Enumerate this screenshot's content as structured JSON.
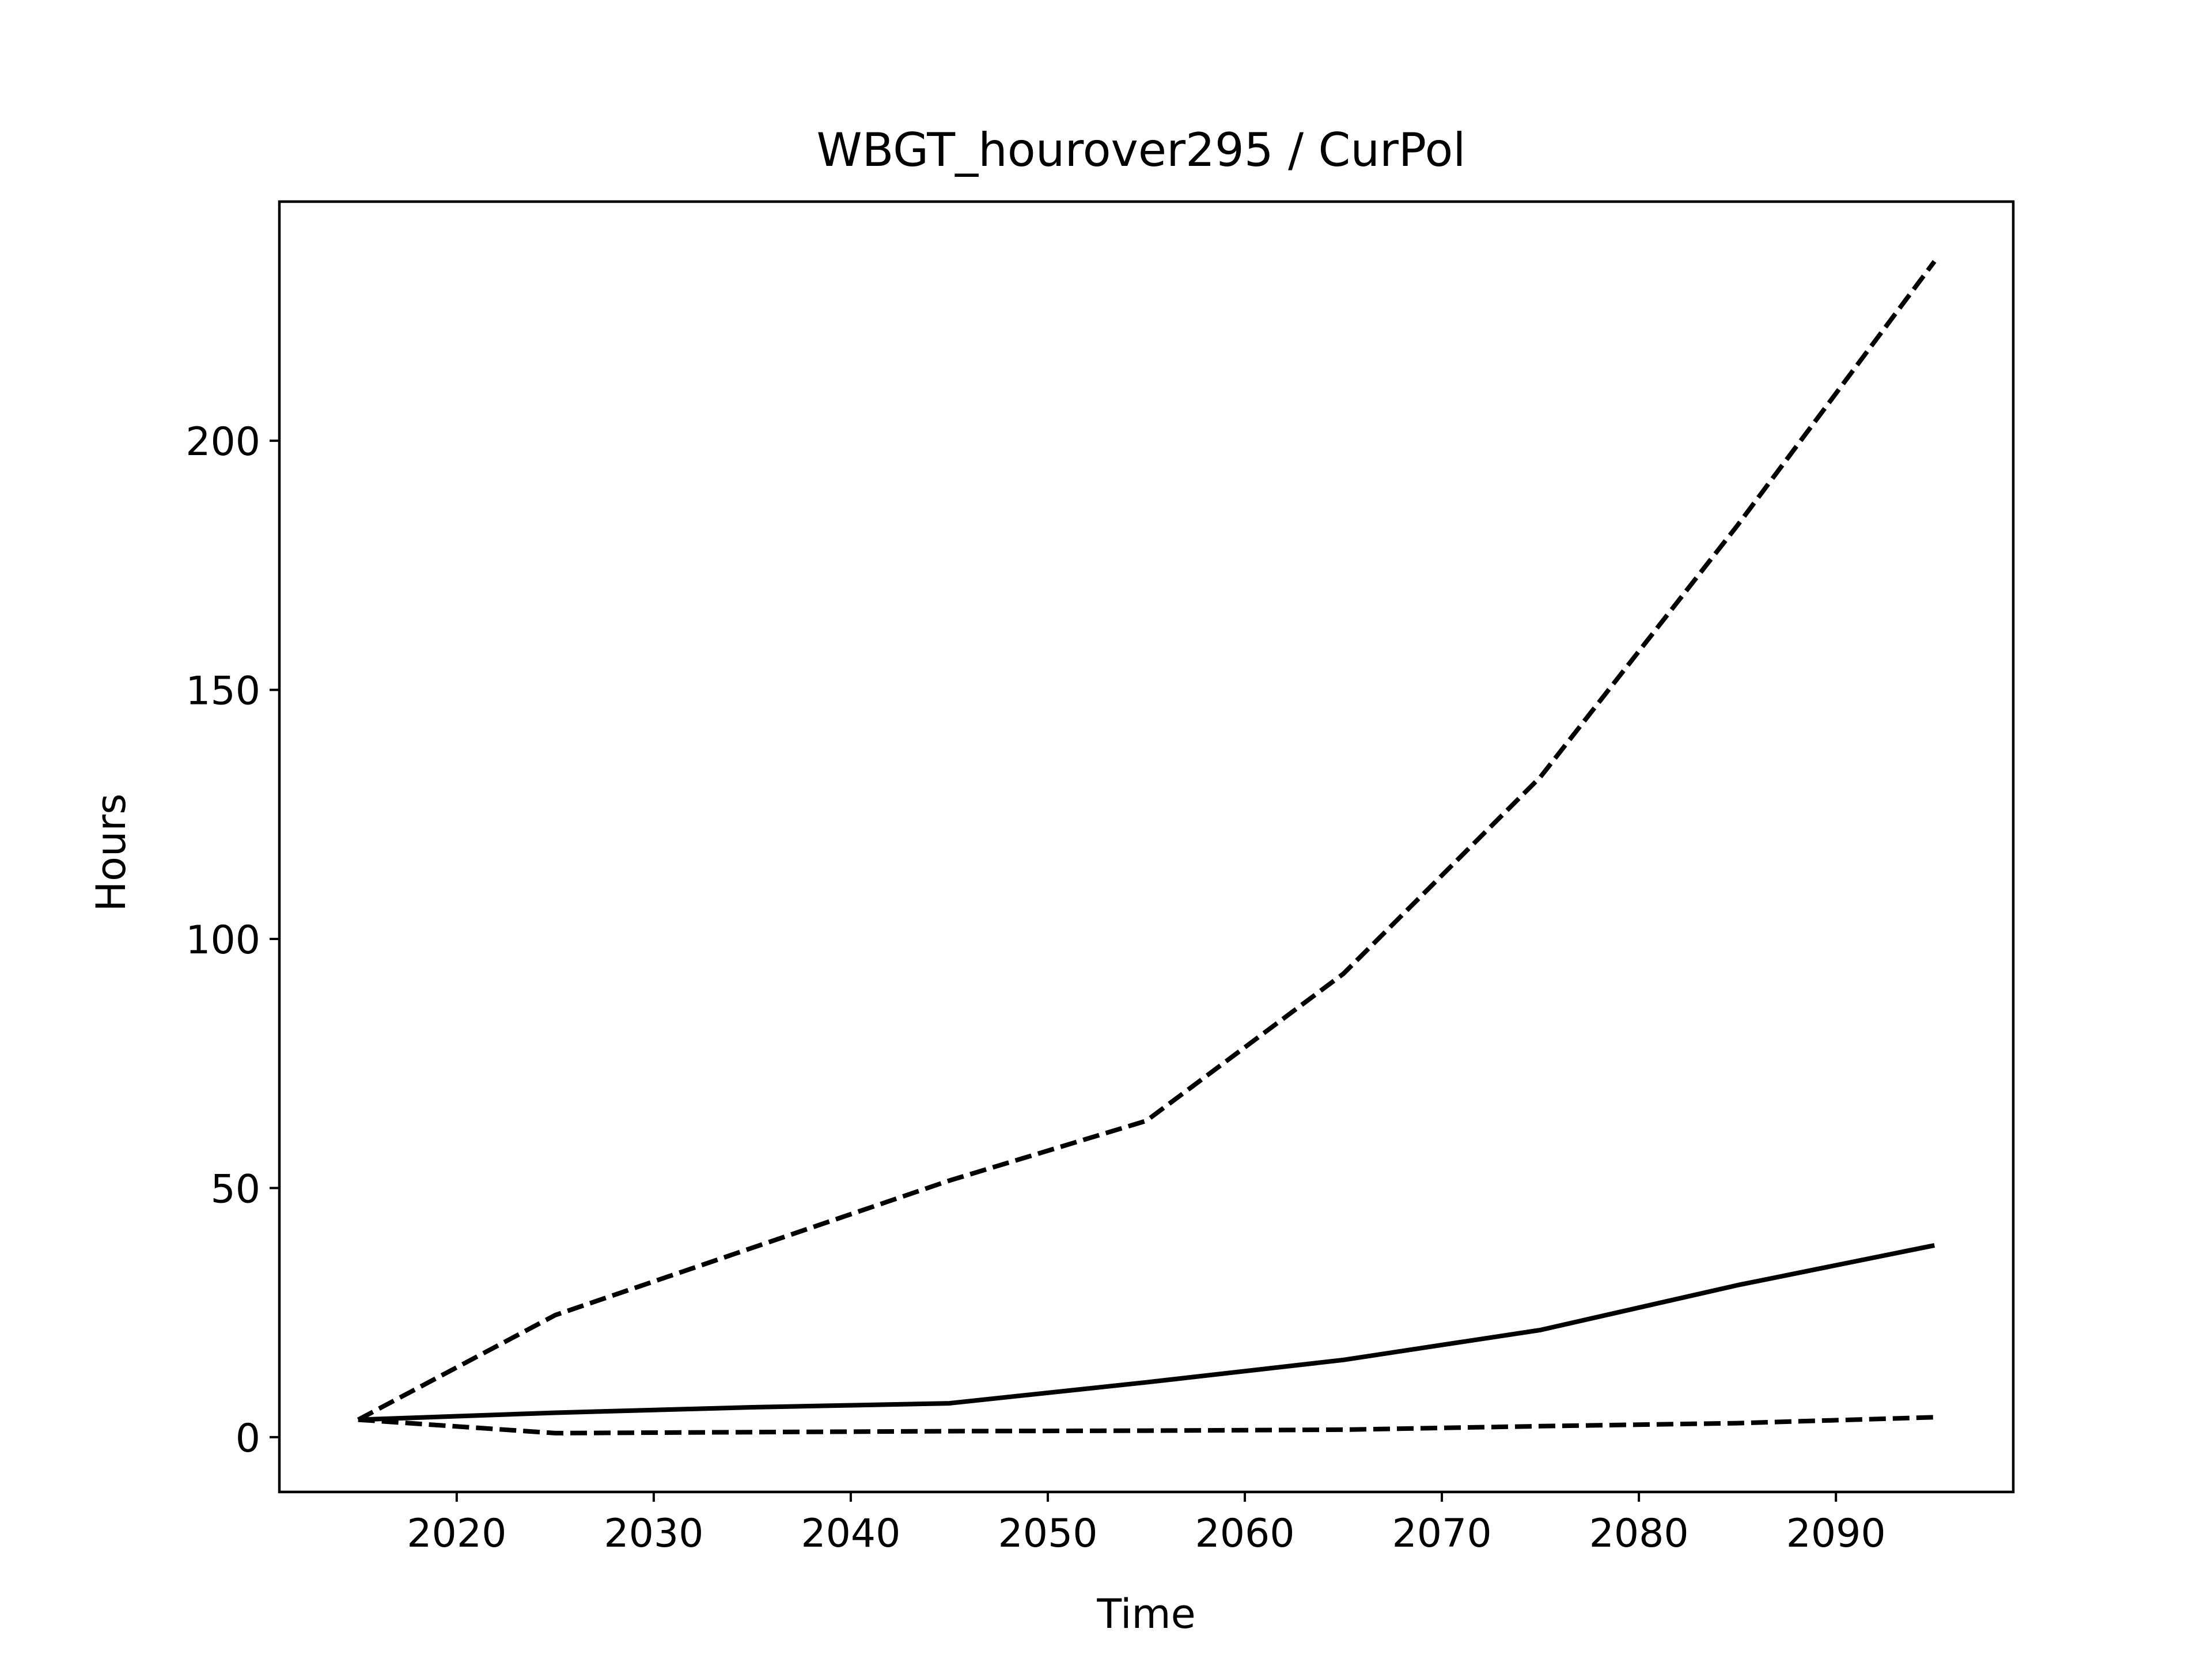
{
  "chart_data": {
    "type": "line",
    "title": "WBGT_hourover295 / CurPol",
    "xlabel": "Time",
    "ylabel": "Hours",
    "xlim": [
      2011,
      2099
    ],
    "ylim": [
      -11,
      248
    ],
    "xticks": [
      2020,
      2030,
      2040,
      2050,
      2060,
      2070,
      2080,
      2090
    ],
    "yticks": [
      0,
      50,
      100,
      150,
      200
    ],
    "grid": false,
    "legend": "none",
    "line_color": "#000000",
    "x": [
      2015,
      2025,
      2035,
      2045,
      2055,
      2065,
      2075,
      2085,
      2095
    ],
    "series": [
      {
        "style": "dashed",
        "values": [
          3.5,
          24.5,
          38.0,
          51.5,
          63.5,
          93.0,
          132.5,
          183.0,
          236.0
        ]
      },
      {
        "style": "solid",
        "values": [
          3.5,
          4.9,
          6.0,
          6.8,
          11.0,
          15.5,
          21.5,
          30.5,
          38.5
        ]
      },
      {
        "style": "dashed",
        "values": [
          3.5,
          0.8,
          1.0,
          1.2,
          1.3,
          1.5,
          2.2,
          2.8,
          4.0
        ]
      }
    ]
  }
}
